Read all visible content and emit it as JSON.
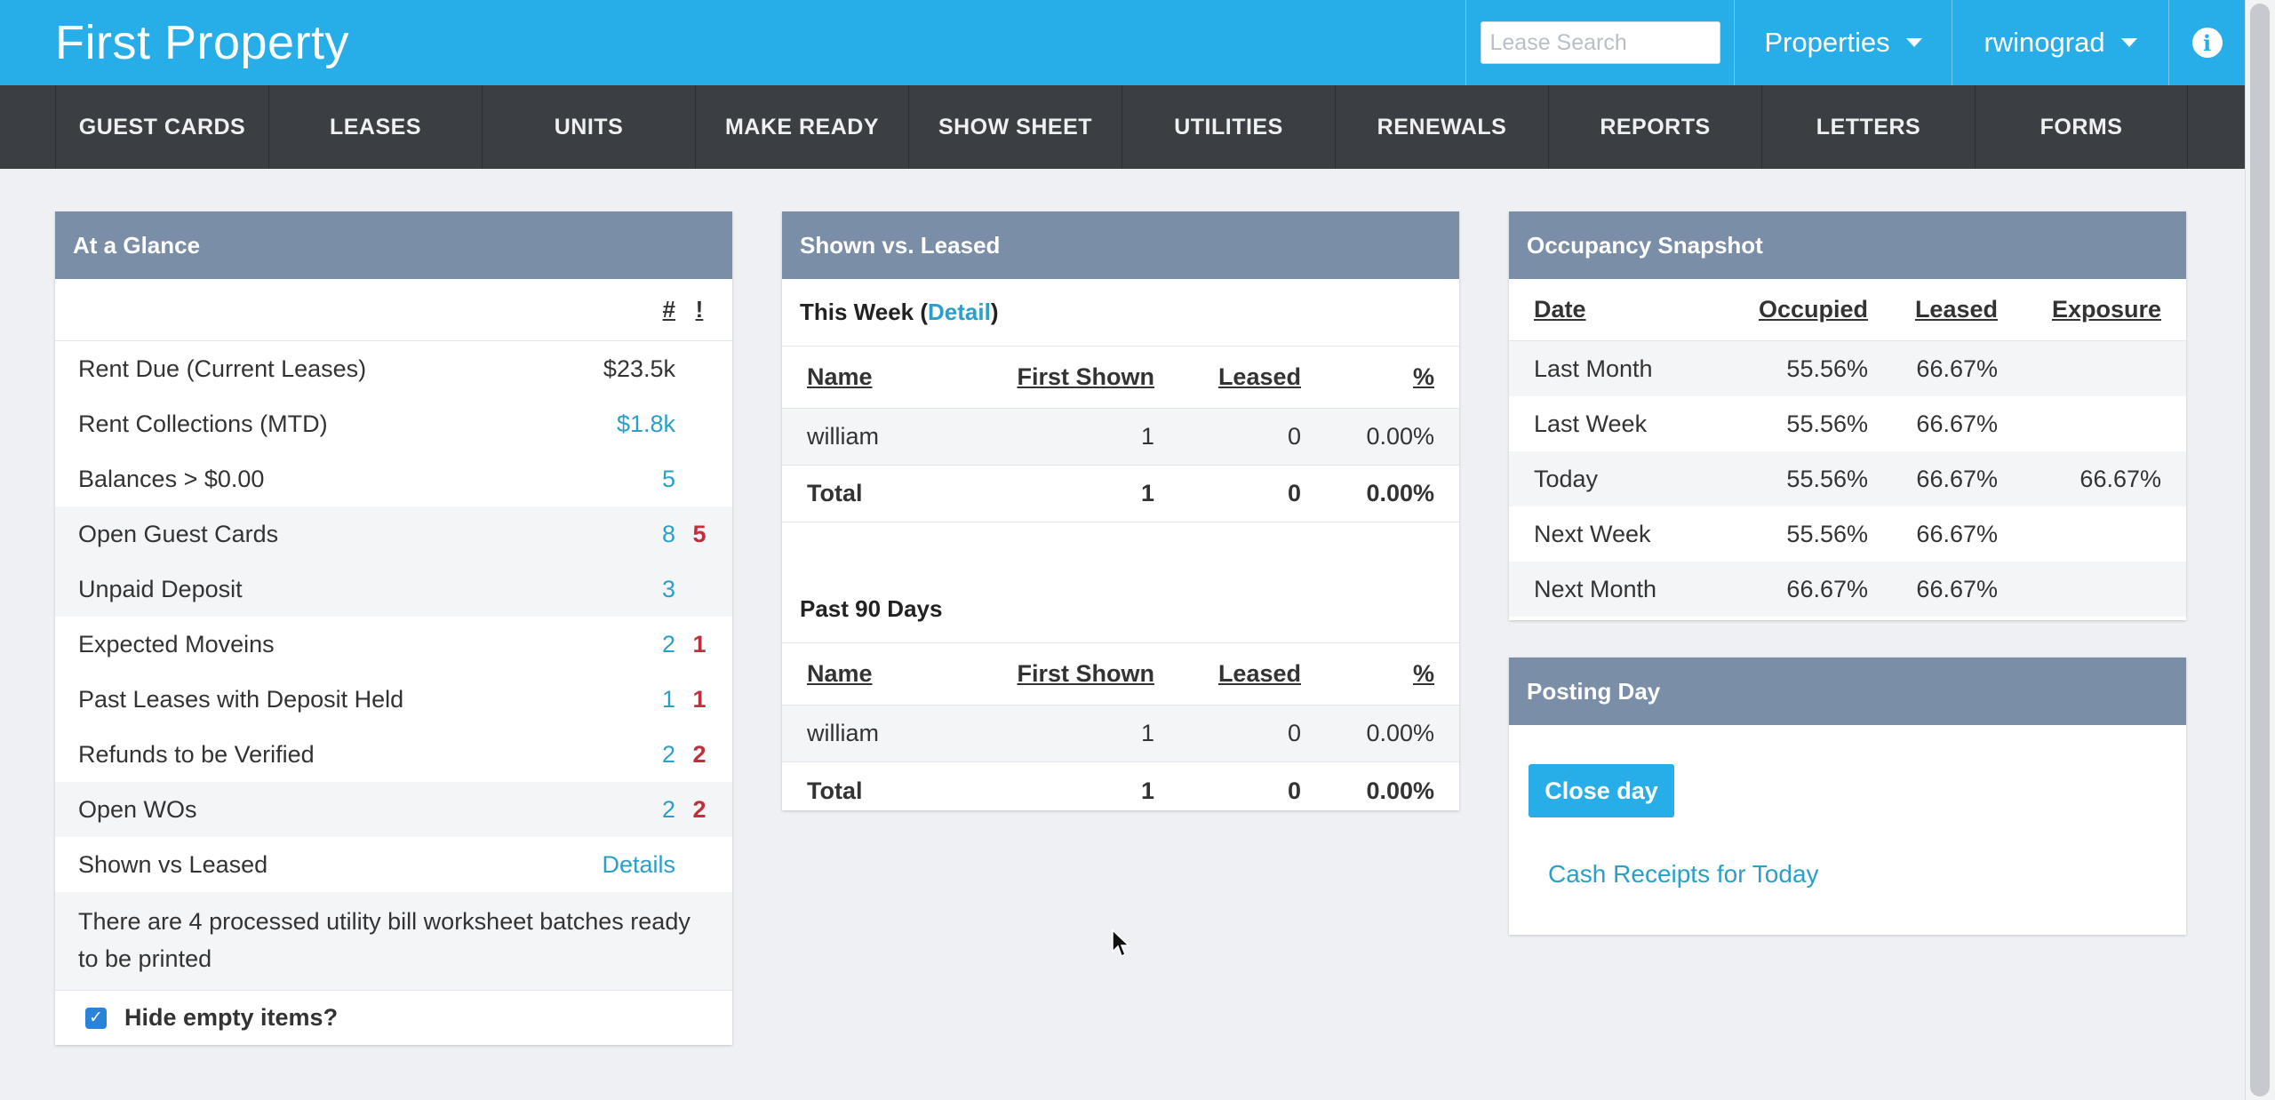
{
  "header": {
    "brand": "First Property",
    "search_placeholder": "Lease Search",
    "properties_label": "Properties",
    "user_label": "rwinograd",
    "info_symbol": "i"
  },
  "nav": {
    "items": [
      "GUEST CARDS",
      "LEASES",
      "UNITS",
      "MAKE READY",
      "SHOW SHEET",
      "UTILITIES",
      "RENEWALS",
      "REPORTS",
      "LETTERS",
      "FORMS"
    ]
  },
  "glance": {
    "title": "At a Glance",
    "col_count": "#",
    "col_alert": "!",
    "rows": [
      {
        "label": "Rent Due (Current Leases)",
        "value": "$23.5k",
        "alert": ""
      },
      {
        "label": "Rent Collections (MTD)",
        "value": "$1.8k",
        "alert": ""
      },
      {
        "label": "Balances > $0.00",
        "value": "5",
        "alert": ""
      },
      {
        "label": "Open Guest Cards",
        "value": "8",
        "alert": "5"
      },
      {
        "label": "Unpaid Deposit",
        "value": "3",
        "alert": ""
      },
      {
        "label": "Expected Moveins",
        "value": "2",
        "alert": "1"
      },
      {
        "label": "Past Leases with Deposit Held",
        "value": "1",
        "alert": "1"
      },
      {
        "label": "Refunds to be Verified",
        "value": "2",
        "alert": "2"
      },
      {
        "label": "Open WOs",
        "value": "2",
        "alert": "2"
      },
      {
        "label": "Shown vs Leased",
        "value": "Details",
        "alert": ""
      }
    ],
    "note": "There are 4 processed utility bill worksheet batches ready to be printed",
    "hide_empty_label": "Hide empty items?",
    "hide_empty_checked": true
  },
  "shown": {
    "title": "Shown vs. Leased",
    "this_week_label": "This Week",
    "detail_link": "Detail",
    "past_label": "Past 90 Days",
    "columns": {
      "name": "Name",
      "first": "First Shown",
      "leased": "Leased",
      "pct": "%"
    },
    "this_week": {
      "rows": [
        {
          "name": "william",
          "first": "1",
          "leased": "0",
          "pct": "0.00%"
        }
      ],
      "total": {
        "name": "Total",
        "first": "1",
        "leased": "0",
        "pct": "0.00%"
      }
    },
    "past_90": {
      "rows": [
        {
          "name": "william",
          "first": "1",
          "leased": "0",
          "pct": "0.00%"
        }
      ],
      "total": {
        "name": "Total",
        "first": "1",
        "leased": "0",
        "pct": "0.00%"
      }
    }
  },
  "occupancy": {
    "title": "Occupancy Snapshot",
    "columns": {
      "date": "Date",
      "occupied": "Occupied",
      "leased": "Leased",
      "exposure": "Exposure"
    },
    "rows": [
      {
        "date": "Last Month",
        "occupied": "55.56%",
        "leased": "66.67%",
        "exposure": ""
      },
      {
        "date": "Last Week",
        "occupied": "55.56%",
        "leased": "66.67%",
        "exposure": ""
      },
      {
        "date": "Today",
        "occupied": "55.56%",
        "leased": "66.67%",
        "exposure": "66.67%"
      },
      {
        "date": "Next Week",
        "occupied": "55.56%",
        "leased": "66.67%",
        "exposure": ""
      },
      {
        "date": "Next Month",
        "occupied": "66.67%",
        "leased": "66.67%",
        "exposure": ""
      }
    ]
  },
  "posting": {
    "title": "Posting Day",
    "close_button": "Close day",
    "cash_link": "Cash Receipts for Today"
  },
  "colors": {
    "header_bg": "#27aee8",
    "nav_bg": "#3b3e43",
    "panel_head_bg": "#7a8ea7",
    "link": "#2a9fc9",
    "alert": "#c22f3b"
  }
}
